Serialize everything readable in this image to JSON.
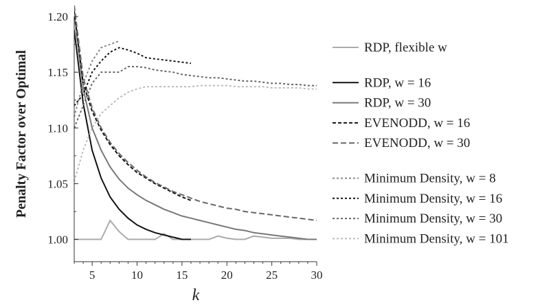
{
  "chart_data": {
    "type": "line",
    "title": "",
    "xlabel": "k",
    "ylabel": "Penalty Factor over Optimal",
    "xlim": [
      3,
      30
    ],
    "ylim": [
      0.98,
      1.2
    ],
    "xticks": [
      5,
      10,
      15,
      20,
      25,
      30
    ],
    "yticks": [
      1.0,
      1.05,
      1.1,
      1.15,
      1.2
    ],
    "xtick_labels": [
      "5",
      "10",
      "15",
      "20",
      "25",
      "30"
    ],
    "ytick_labels": [
      "1.00",
      "1.05",
      "1.10",
      "1.15",
      "1.20"
    ],
    "grid": false,
    "legend_position": "right",
    "series": [
      {
        "name": "RDP, flexible w",
        "color": "#aaaaaa",
        "dash": "solid",
        "width": 2,
        "points": [
          [
            3,
            1.0
          ],
          [
            4,
            1.0
          ],
          [
            5,
            1.0
          ],
          [
            6,
            1.0
          ],
          [
            7,
            1.017
          ],
          [
            8,
            1.007
          ],
          [
            9,
            1.0
          ],
          [
            10,
            1.0
          ],
          [
            11,
            1.0
          ],
          [
            12,
            1.0
          ],
          [
            13,
            1.005
          ],
          [
            14,
            1.0
          ],
          [
            15,
            1.0
          ],
          [
            16,
            1.0
          ],
          [
            17,
            1.0
          ],
          [
            18,
            1.0
          ],
          [
            19,
            1.003
          ],
          [
            20,
            1.001
          ],
          [
            21,
            1.0
          ],
          [
            22,
            1.0
          ],
          [
            23,
            1.003
          ],
          [
            24,
            1.002
          ],
          [
            25,
            1.001
          ],
          [
            26,
            1.001
          ],
          [
            27,
            1.001
          ],
          [
            28,
            1.0
          ],
          [
            29,
            1.0
          ],
          [
            30,
            1.0
          ]
        ]
      },
      {
        "name": "RDP, w = 16",
        "color": "#111111",
        "dash": "solid",
        "width": 2,
        "points": [
          [
            3,
            1.188
          ],
          [
            4,
            1.122
          ],
          [
            5,
            1.08
          ],
          [
            6,
            1.055
          ],
          [
            7,
            1.038
          ],
          [
            8,
            1.027
          ],
          [
            9,
            1.019
          ],
          [
            10,
            1.013
          ],
          [
            11,
            1.009
          ],
          [
            12,
            1.006
          ],
          [
            13,
            1.004
          ],
          [
            14,
            1.002
          ],
          [
            15,
            1.0
          ],
          [
            16,
            1.0
          ]
        ]
      },
      {
        "name": "RDP, w = 30",
        "color": "#777777",
        "dash": "solid",
        "width": 2,
        "points": [
          [
            3,
            1.203
          ],
          [
            4,
            1.135
          ],
          [
            5,
            1.1
          ],
          [
            6,
            1.08
          ],
          [
            7,
            1.065
          ],
          [
            8,
            1.054
          ],
          [
            9,
            1.046
          ],
          [
            10,
            1.04
          ],
          [
            11,
            1.035
          ],
          [
            12,
            1.031
          ],
          [
            13,
            1.027
          ],
          [
            14,
            1.024
          ],
          [
            15,
            1.021
          ],
          [
            16,
            1.019
          ],
          [
            17,
            1.017
          ],
          [
            18,
            1.015
          ],
          [
            19,
            1.013
          ],
          [
            20,
            1.011
          ],
          [
            21,
            1.009
          ],
          [
            22,
            1.008
          ],
          [
            23,
            1.006
          ],
          [
            24,
            1.005
          ],
          [
            25,
            1.004
          ],
          [
            26,
            1.003
          ],
          [
            27,
            1.002
          ],
          [
            28,
            1.001
          ],
          [
            29,
            1.0
          ],
          [
            30,
            1.0
          ]
        ]
      },
      {
        "name": "EVENODD, w = 16",
        "color": "#111111",
        "dash": "5,3",
        "width": 2,
        "points": [
          [
            3,
            1.205
          ],
          [
            4,
            1.14
          ],
          [
            5,
            1.115
          ],
          [
            6,
            1.098
          ],
          [
            7,
            1.085
          ],
          [
            8,
            1.075
          ],
          [
            9,
            1.067
          ],
          [
            10,
            1.06
          ],
          [
            11,
            1.055
          ],
          [
            12,
            1.05
          ],
          [
            13,
            1.046
          ],
          [
            14,
            1.042
          ],
          [
            15,
            1.038
          ],
          [
            16,
            1.035
          ]
        ]
      },
      {
        "name": "EVENODD, w = 30",
        "color": "#666666",
        "dash": "8,4",
        "width": 2,
        "points": [
          [
            3,
            1.21
          ],
          [
            4,
            1.145
          ],
          [
            5,
            1.118
          ],
          [
            6,
            1.1
          ],
          [
            7,
            1.087
          ],
          [
            8,
            1.077
          ],
          [
            9,
            1.069
          ],
          [
            10,
            1.062
          ],
          [
            11,
            1.056
          ],
          [
            12,
            1.051
          ],
          [
            13,
            1.047
          ],
          [
            14,
            1.043
          ],
          [
            15,
            1.04
          ],
          [
            16,
            1.037
          ],
          [
            17,
            1.034
          ],
          [
            18,
            1.032
          ],
          [
            19,
            1.03
          ],
          [
            20,
            1.028
          ],
          [
            21,
            1.027
          ],
          [
            22,
            1.025
          ],
          [
            23,
            1.024
          ],
          [
            24,
            1.023
          ],
          [
            25,
            1.022
          ],
          [
            26,
            1.021
          ],
          [
            27,
            1.02
          ],
          [
            28,
            1.019
          ],
          [
            29,
            1.018
          ],
          [
            30,
            1.017
          ]
        ]
      },
      {
        "name": "Minimum Density, w = 8",
        "color": "#888888",
        "dash": "3,3",
        "width": 2,
        "points": [
          [
            3,
            1.11
          ],
          [
            4,
            1.14
          ],
          [
            5,
            1.16
          ],
          [
            6,
            1.172
          ],
          [
            7,
            1.175
          ],
          [
            8,
            1.178
          ]
        ]
      },
      {
        "name": "Minimum Density, w = 16",
        "color": "#111111",
        "dash": "3,3",
        "width": 2,
        "points": [
          [
            3,
            1.12
          ],
          [
            4,
            1.13
          ],
          [
            5,
            1.15
          ],
          [
            6,
            1.16
          ],
          [
            7,
            1.168
          ],
          [
            8,
            1.172
          ],
          [
            9,
            1.17
          ],
          [
            10,
            1.167
          ],
          [
            11,
            1.163
          ],
          [
            12,
            1.162
          ],
          [
            13,
            1.161
          ],
          [
            14,
            1.16
          ],
          [
            15,
            1.159
          ],
          [
            16,
            1.158
          ]
        ]
      },
      {
        "name": "Minimum Density, w = 30",
        "color": "#666666",
        "dash": "3,3",
        "width": 2,
        "points": [
          [
            3,
            1.1
          ],
          [
            4,
            1.12
          ],
          [
            5,
            1.14
          ],
          [
            6,
            1.15
          ],
          [
            7,
            1.15
          ],
          [
            8,
            1.15
          ],
          [
            9,
            1.155
          ],
          [
            10,
            1.155
          ],
          [
            11,
            1.154
          ],
          [
            12,
            1.152
          ],
          [
            13,
            1.151
          ],
          [
            14,
            1.15
          ],
          [
            15,
            1.148
          ],
          [
            16,
            1.147
          ],
          [
            17,
            1.146
          ],
          [
            18,
            1.145
          ],
          [
            19,
            1.145
          ],
          [
            20,
            1.144
          ],
          [
            21,
            1.143
          ],
          [
            22,
            1.142
          ],
          [
            23,
            1.142
          ],
          [
            24,
            1.141
          ],
          [
            25,
            1.14
          ],
          [
            26,
            1.14
          ],
          [
            27,
            1.139
          ],
          [
            28,
            1.139
          ],
          [
            29,
            1.138
          ],
          [
            30,
            1.138
          ]
        ]
      },
      {
        "name": "Minimum Density, w = 101",
        "color": "#bbbbbb",
        "dash": "3,3",
        "width": 2,
        "points": [
          [
            3,
            1.052
          ],
          [
            4,
            1.08
          ],
          [
            5,
            1.1
          ],
          [
            6,
            1.113
          ],
          [
            7,
            1.12
          ],
          [
            8,
            1.127
          ],
          [
            9,
            1.132
          ],
          [
            10,
            1.135
          ],
          [
            11,
            1.137
          ],
          [
            12,
            1.137
          ],
          [
            13,
            1.137
          ],
          [
            14,
            1.137
          ],
          [
            15,
            1.137
          ],
          [
            16,
            1.137
          ],
          [
            17,
            1.138
          ],
          [
            18,
            1.138
          ],
          [
            19,
            1.138
          ],
          [
            20,
            1.138
          ],
          [
            21,
            1.137
          ],
          [
            22,
            1.137
          ],
          [
            23,
            1.137
          ],
          [
            24,
            1.137
          ],
          [
            25,
            1.136
          ],
          [
            26,
            1.136
          ],
          [
            27,
            1.136
          ],
          [
            28,
            1.136
          ],
          [
            29,
            1.135
          ],
          [
            30,
            1.135
          ]
        ]
      }
    ],
    "legend_groups": [
      [
        0
      ],
      [
        1,
        2,
        3,
        4
      ],
      [
        5,
        6,
        7,
        8
      ]
    ]
  }
}
